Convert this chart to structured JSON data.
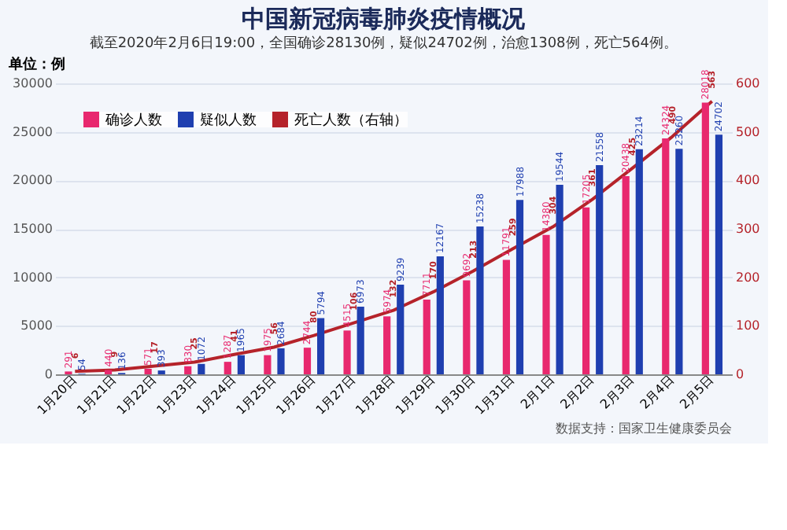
{
  "chart_data": {
    "type": "bar",
    "title": "中国新冠病毒肺炎疫情概况",
    "subtitle": "截至2020年2月6日19:00，全国确诊28130例，疑似24702例，治愈1308例，死亡564例。",
    "ylabel": "单位：例",
    "categories": [
      "1月20日",
      "1月21日",
      "1月22日",
      "1月23日",
      "1月24日",
      "1月25日",
      "1月26日",
      "1月27日",
      "1月28日",
      "1月29日",
      "1月30日",
      "1月31日",
      "2月1日",
      "2月2日",
      "2月3日",
      "2月4日",
      "2月5日"
    ],
    "series": [
      {
        "name": "确诊人数",
        "color": "#e8286e",
        "values": [
          291,
          440,
          571,
          830,
          1287,
          1975,
          2744,
          4515,
          5974,
          7711,
          9692,
          11791,
          14380,
          17205,
          20438,
          24324,
          28018
        ]
      },
      {
        "name": "疑似人数",
        "color": "#1f3fb0",
        "values": [
          54,
          136,
          393,
          1072,
          1965,
          2684,
          5794,
          6973,
          9239,
          12167,
          15238,
          17988,
          19544,
          21558,
          23214,
          23260,
          24702
        ]
      },
      {
        "name": "死亡人数（右轴）",
        "color": "#b5232a",
        "type": "line",
        "axis": "y2",
        "values": [
          6,
          9,
          17,
          25,
          41,
          56,
          80,
          106,
          132,
          170,
          213,
          259,
          304,
          361,
          425,
          490,
          563
        ]
      }
    ],
    "ylim": [
      0,
      30000
    ],
    "yticks": [
      0,
      5000,
      10000,
      15000,
      20000,
      25000,
      30000
    ],
    "y2lim": [
      0,
      600
    ],
    "y2ticks": [
      0,
      100,
      200,
      300,
      400,
      500,
      600
    ],
    "data_labels": true,
    "grid": "y",
    "legend": "top left",
    "annotations": [
      "数据支持：国家卫生健康委员会"
    ]
  }
}
